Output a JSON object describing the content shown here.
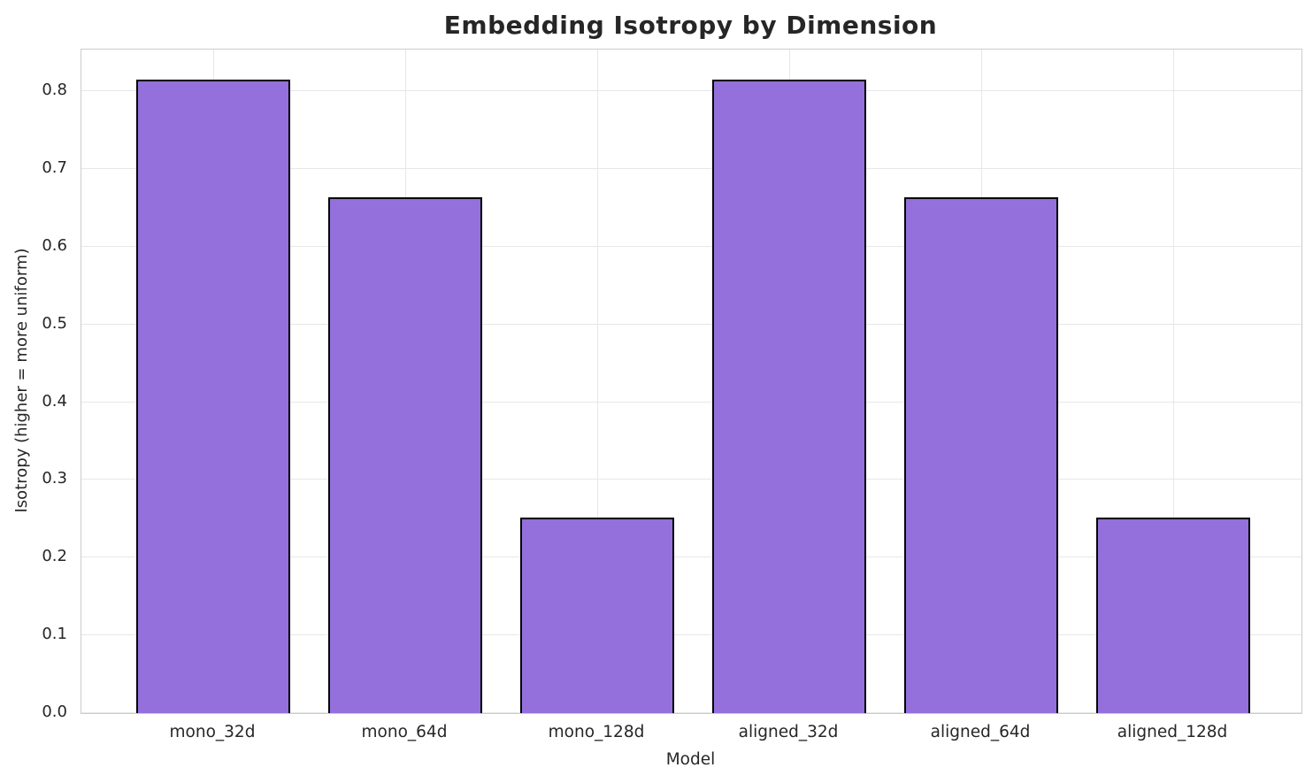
{
  "chart_data": {
    "type": "bar",
    "title": "Embedding Isotropy by Dimension",
    "xlabel": "Model",
    "ylabel": "Isotropy (higher = more uniform)",
    "categories": [
      "mono_32d",
      "mono_64d",
      "mono_128d",
      "aligned_32d",
      "aligned_64d",
      "aligned_128d"
    ],
    "values": [
      0.815,
      0.664,
      0.251,
      0.815,
      0.664,
      0.251
    ],
    "yticks": [
      0.0,
      0.1,
      0.2,
      0.3,
      0.4,
      0.5,
      0.6,
      0.7,
      0.8
    ],
    "ytick_labels": [
      "0.0",
      "0.1",
      "0.2",
      "0.3",
      "0.4",
      "0.5",
      "0.6",
      "0.7",
      "0.8"
    ],
    "ylim": [
      0,
      0.8535
    ],
    "grid": true,
    "legend": "none",
    "colors": {
      "bar_fill": "#9370DB",
      "bar_edge": "#000000",
      "grid": "#e7e7e7",
      "spine": "#cccccc",
      "text": "#262626",
      "background": "#ffffff"
    }
  }
}
